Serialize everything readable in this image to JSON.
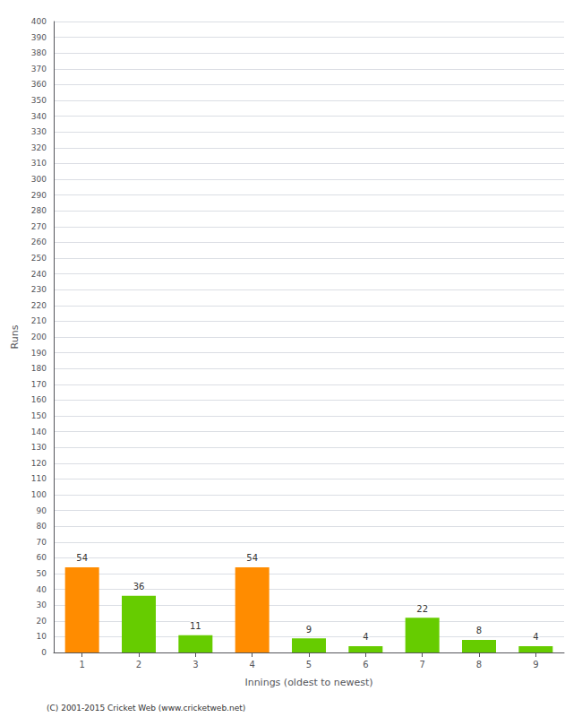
{
  "chart_data": {
    "type": "bar",
    "categories": [
      "1",
      "2",
      "3",
      "4",
      "5",
      "6",
      "7",
      "8",
      "9"
    ],
    "values": [
      54,
      36,
      11,
      54,
      9,
      4,
      22,
      8,
      4
    ],
    "colors": [
      "#FF8C00",
      "#66CC00",
      "#66CC00",
      "#FF8C00",
      "#66CC00",
      "#66CC00",
      "#66CC00",
      "#66CC00",
      "#66CC00"
    ],
    "xlabel": "Innings (oldest to newest)",
    "ylabel": "Runs",
    "ylim": [
      0,
      400
    ],
    "yticks": [
      0,
      10,
      20,
      30,
      40,
      50,
      60,
      70,
      80,
      90,
      100,
      110,
      120,
      130,
      140,
      150,
      160,
      170,
      180,
      190,
      200,
      210,
      220,
      230,
      240,
      250,
      260,
      270,
      280,
      290,
      300,
      310,
      320,
      330,
      340,
      350,
      360,
      370,
      380,
      390,
      400
    ],
    "grid": true,
    "data_labels": true,
    "annotations": [
      "(C) 2001-2015 Cricket Web (www.cricketweb.net)"
    ]
  }
}
